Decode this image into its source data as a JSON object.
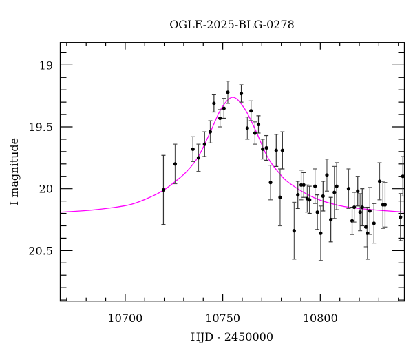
{
  "chart_data": {
    "type": "scatter",
    "title": "OGLE-2025-BLG-0278",
    "xlabel": "HJD - 2450000",
    "ylabel": "I magnitude",
    "xlim": [
      10666.7,
      10843.1
    ],
    "ylim": [
      20.909,
      18.818
    ],
    "y_inverted": true,
    "x_major_ticks": [
      10700,
      10750,
      10800
    ],
    "x_tick_labels": [
      "10700",
      "10750",
      "10800"
    ],
    "x_minor_step": 10,
    "y_major_ticks": [
      19,
      19.5,
      20,
      20.5
    ],
    "y_tick_labels": [
      "19",
      "19.5",
      "20",
      "20.5"
    ],
    "y_minor_step": 0.1,
    "grid": false,
    "colors": {
      "points": "#000000",
      "errorbars": "#333333",
      "model": "#ff00ff"
    },
    "series": [
      {
        "kind": "points_with_errorbars",
        "x": [
          10719.6,
          10725.6,
          10734.7,
          10737.6,
          10740.7,
          10743.6,
          10745.5,
          10748.6,
          10750.6,
          10752.6,
          10759.5,
          10762.6,
          10764.5,
          10766.5,
          10768.3,
          10770.5,
          10772.4,
          10774.5,
          10777.4,
          10779.4,
          10780.6,
          10786.6,
          10788.5,
          10790.2,
          10791.5,
          10793.3,
          10794.5,
          10797.3,
          10798.5,
          10800.2,
          10801.4,
          10803.4,
          10805.4,
          10807.2,
          10808.4,
          10814.5,
          10816.3,
          10817.4,
          10819.2,
          10820.4,
          10821.5,
          10823.4,
          10824.2,
          10825.4,
          10827.5,
          10830.4,
          10832.1,
          10833.2,
          10841.1,
          10842.3
        ],
        "y": [
          20.01,
          19.8,
          19.68,
          19.75,
          19.64,
          19.54,
          19.31,
          19.43,
          19.35,
          19.22,
          19.23,
          19.51,
          19.37,
          19.55,
          19.48,
          19.68,
          19.67,
          19.95,
          19.69,
          20.07,
          19.69,
          20.34,
          20.05,
          19.97,
          19.97,
          20.08,
          20.09,
          19.98,
          20.19,
          20.36,
          20.06,
          19.89,
          20.25,
          20.03,
          19.98,
          20.0,
          20.26,
          20.15,
          20.02,
          20.19,
          20.15,
          20.31,
          20.36,
          20.18,
          20.28,
          19.94,
          20.13,
          20.13,
          20.23,
          19.9
        ],
        "yerr": [
          0.28,
          0.16,
          0.1,
          0.11,
          0.1,
          0.09,
          0.07,
          0.07,
          0.08,
          0.09,
          0.07,
          0.09,
          0.08,
          0.09,
          0.07,
          0.08,
          0.1,
          0.14,
          0.13,
          0.23,
          0.15,
          0.23,
          0.11,
          0.12,
          0.1,
          0.11,
          0.11,
          0.14,
          0.14,
          0.22,
          0.12,
          0.13,
          0.18,
          0.21,
          0.19,
          0.16,
          0.11,
          0.12,
          0.12,
          0.15,
          0.15,
          0.16,
          0.21,
          0.19,
          0.16,
          0.15,
          0.19,
          0.18,
          0.19,
          0.16
        ]
      },
      {
        "kind": "model_curve",
        "x": [
          10666.9,
          10684.6,
          10702.2,
          10714.0,
          10719.9,
          10725.8,
          10731.6,
          10737.5,
          10743.4,
          10749.3,
          10755.2,
          10761.1,
          10766.9,
          10772.8,
          10778.7,
          10784.6,
          10796.4,
          10808.1,
          10819.9,
          10843.4
        ],
        "y": [
          20.19,
          20.17,
          20.13,
          20.06,
          20.01,
          19.94,
          19.86,
          19.74,
          19.55,
          19.35,
          19.26,
          19.35,
          19.53,
          19.74,
          19.87,
          19.96,
          20.07,
          20.13,
          20.16,
          20.19
        ]
      }
    ]
  }
}
